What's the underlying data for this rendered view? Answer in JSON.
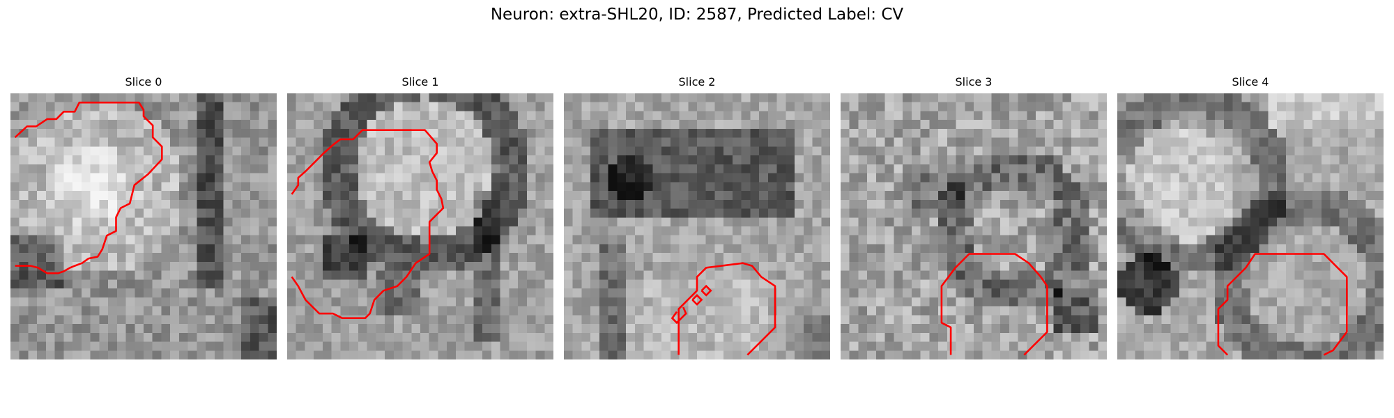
{
  "figure": {
    "title": "Neuron: extra-SHL20, ID: 2587, Predicted Label: CV"
  },
  "slices": [
    {
      "title": "Slice 0"
    },
    {
      "title": "Slice 1"
    },
    {
      "title": "Slice 2"
    },
    {
      "title": "Slice 3"
    },
    {
      "title": "Slice 4"
    }
  ],
  "colors": {
    "contour": "#ff0000"
  }
}
